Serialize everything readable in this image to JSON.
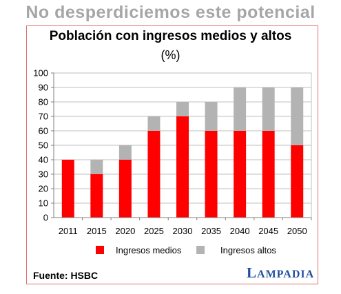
{
  "headline": "No desperdiciemos este potencial",
  "source": "Fuente: HSBC",
  "brand": "LAMPADIA",
  "colors": {
    "medios": "#ff0000",
    "altos": "#b3b3b3",
    "frame": "#e07070",
    "brand": "#1f4e9c",
    "headline": "#a6a6a6"
  },
  "chart_data": {
    "type": "bar",
    "stacked": true,
    "title": "Población con ingresos medios y altos",
    "subtitle": "(%)",
    "categories": [
      "2011",
      "2015",
      "2020",
      "2025",
      "2030",
      "2035",
      "2040",
      "2045",
      "2050"
    ],
    "series": [
      {
        "name": "Ingresos medios",
        "values": [
          40,
          30,
          40,
          60,
          70,
          60,
          60,
          60,
          50
        ]
      },
      {
        "name": "Ingresos altos",
        "values": [
          0,
          10,
          10,
          10,
          10,
          20,
          30,
          30,
          40
        ]
      }
    ],
    "ylim": [
      0,
      100
    ],
    "yticks": [
      0,
      10,
      20,
      30,
      40,
      50,
      60,
      70,
      80,
      90,
      100
    ],
    "grid": true,
    "legend": "bottom"
  }
}
